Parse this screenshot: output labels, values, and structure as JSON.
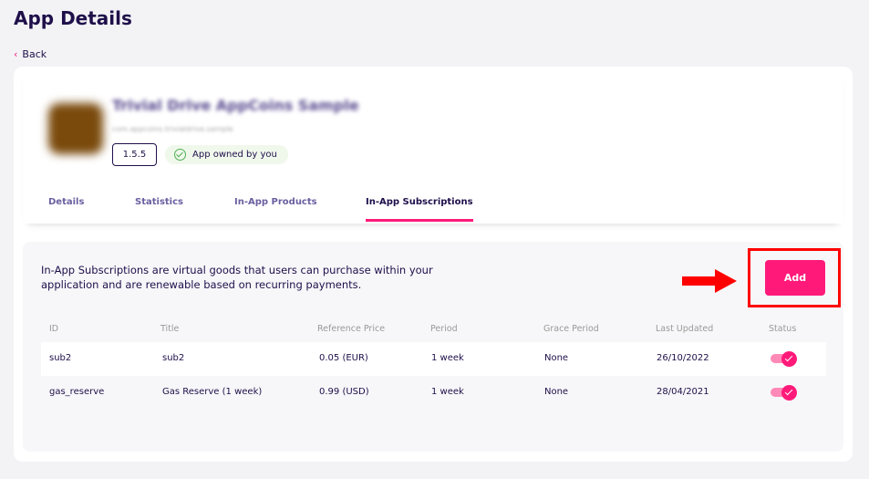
{
  "page": {
    "title": "App Details",
    "back_label": "Back"
  },
  "app": {
    "name": "Trivial Drive AppCoins Sample",
    "package": "com.appcoins.trivialdrive.sample",
    "version": "1.5.5",
    "owned_label": "App owned by you"
  },
  "tabs": [
    {
      "label": "Details"
    },
    {
      "label": "Statistics"
    },
    {
      "label": "In-App Products"
    },
    {
      "label": "In-App Subscriptions",
      "active": true
    }
  ],
  "subscriptions": {
    "description": "In-App Subscriptions are virtual goods that users can purchase within your application and are renewable based on recurring payments.",
    "add_label": "Add",
    "columns": [
      "ID",
      "Title",
      "Reference Price",
      "Period",
      "Grace Period",
      "Last Updated",
      "Status"
    ],
    "rows": [
      {
        "id": "sub2",
        "title": "sub2",
        "price": "0.05 (EUR)",
        "period": "1 week",
        "grace": "None",
        "updated": "26/10/2022",
        "status": true
      },
      {
        "id": "gas_reserve",
        "title": "Gas Reserve (1 week)",
        "price": "0.99 (USD)",
        "period": "1 week",
        "grace": "None",
        "updated": "28/04/2021",
        "status": true
      }
    ]
  },
  "colors": {
    "accent": "#ff1a7a",
    "text": "#1f0f4a",
    "highlight": "#ff0000"
  }
}
